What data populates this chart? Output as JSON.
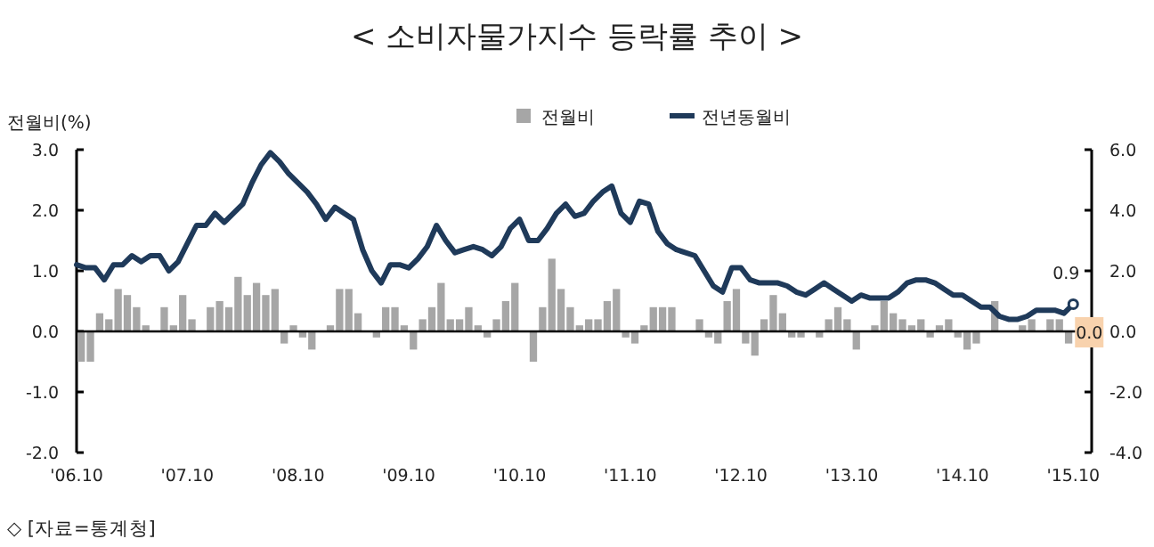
{
  "chart_data": {
    "type": "bar",
    "title": "< 소비자물가지수 등락률 추이 >",
    "ylabel": "전월비(%)",
    "annotations": [
      "◇ [자료=통계청]"
    ],
    "x": [
      "2006-10",
      "2006-11",
      "2006-12",
      "2007-01",
      "2007-02",
      "2007-03",
      "2007-04",
      "2007-05",
      "2007-06",
      "2007-07",
      "2007-08",
      "2007-09",
      "2007-10",
      "2007-11",
      "2007-12",
      "2008-01",
      "2008-02",
      "2008-03",
      "2008-04",
      "2008-05",
      "2008-06",
      "2008-07",
      "2008-08",
      "2008-09",
      "2008-10",
      "2008-11",
      "2008-12",
      "2009-01",
      "2009-02",
      "2009-03",
      "2009-04",
      "2009-05",
      "2009-06",
      "2009-07",
      "2009-08",
      "2009-09",
      "2009-10",
      "2009-11",
      "2009-12",
      "2010-01",
      "2010-02",
      "2010-03",
      "2010-04",
      "2010-05",
      "2010-06",
      "2010-07",
      "2010-08",
      "2010-09",
      "2010-10",
      "2010-11",
      "2010-12",
      "2011-01",
      "2011-02",
      "2011-03",
      "2011-04",
      "2011-05",
      "2011-06",
      "2011-07",
      "2011-08",
      "2011-09",
      "2011-10",
      "2011-11",
      "2011-12",
      "2012-01",
      "2012-02",
      "2012-03",
      "2012-04",
      "2012-05",
      "2012-06",
      "2012-07",
      "2012-08",
      "2012-09",
      "2012-10",
      "2012-11",
      "2012-12",
      "2013-01",
      "2013-02",
      "2013-03",
      "2013-04",
      "2013-05",
      "2013-06",
      "2013-07",
      "2013-08",
      "2013-09",
      "2013-10",
      "2013-11",
      "2013-12",
      "2014-01",
      "2014-02",
      "2014-03",
      "2014-04",
      "2014-05",
      "2014-06",
      "2014-07",
      "2014-08",
      "2014-09",
      "2014-10",
      "2014-11",
      "2014-12",
      "2015-01",
      "2015-02",
      "2015-03",
      "2015-04",
      "2015-05",
      "2015-06",
      "2015-07",
      "2015-08",
      "2015-09",
      "2015-10"
    ],
    "series": [
      {
        "name": "전월비",
        "color": "#a6a6a6",
        "values": [
          -0.5,
          -0.5,
          0.3,
          0.2,
          0.7,
          0.6,
          0.4,
          0.1,
          0,
          0.4,
          0.1,
          0.6,
          0.2,
          0,
          0.4,
          0.5,
          0.4,
          0.9,
          0.6,
          0.8,
          0.6,
          0.7,
          -0.2,
          0.1,
          -0.1,
          -0.3,
          0,
          0.1,
          0.7,
          0.7,
          0.3,
          0,
          -0.1,
          0.4,
          0.4,
          0.1,
          -0.3,
          0.2,
          0.4,
          0.8,
          0.2,
          0.2,
          0.4,
          0.1,
          -0.1,
          0.2,
          0.5,
          0.8,
          0,
          -0.5,
          0.4,
          1.2,
          0.7,
          0.4,
          0.1,
          0.2,
          0.2,
          0.5,
          0.7,
          -0.1,
          -0.2,
          0.1,
          0.4,
          0.4,
          0.4,
          0,
          0,
          0.2,
          -0.1,
          -0.2,
          0.5,
          0.7,
          -0.2,
          -0.4,
          0.2,
          0.6,
          0.3,
          -0.1,
          -0.1,
          0,
          -0.1,
          0.2,
          0.4,
          0.2,
          -0.3,
          0,
          0.1,
          0.5,
          0.3,
          0.2,
          0.1,
          0.2,
          -0.1,
          0.1,
          0.2,
          -0.1,
          -0.3,
          -0.2,
          0,
          0.5,
          0,
          0,
          0.1,
          0.2,
          0,
          0.2,
          0.2,
          -0.2,
          0.0
        ],
        "value_labels": [
          null,
          null,
          null,
          null,
          null,
          null,
          null,
          null,
          null,
          null,
          null,
          null,
          null,
          null,
          null,
          null,
          null,
          null,
          null,
          null,
          null,
          null,
          null,
          null,
          null,
          null,
          null,
          null,
          null,
          null,
          null,
          null,
          null,
          null,
          null,
          null,
          null,
          null,
          null,
          null,
          null,
          null,
          null,
          null,
          null,
          null,
          null,
          null,
          null,
          null,
          null,
          null,
          null,
          null,
          null,
          null,
          null,
          null,
          null,
          null,
          null,
          null,
          null,
          null,
          null,
          null,
          null,
          null,
          null,
          null,
          null,
          null,
          null,
          null,
          null,
          null,
          null,
          null,
          null,
          null,
          null,
          null,
          null,
          null,
          null,
          null,
          null,
          null,
          null,
          null,
          null,
          null,
          null,
          null,
          null,
          null,
          null,
          null,
          null,
          null,
          null,
          null,
          null,
          null,
          null,
          null,
          null,
          null,
          "0.0"
        ]
      },
      {
        "name": "전년동월비",
        "type": "line",
        "axis": "y2",
        "color": "#1f3a5a",
        "values": [
          2.2,
          2.1,
          2.1,
          1.7,
          2.2,
          2.2,
          2.5,
          2.3,
          2.5,
          2.5,
          2.0,
          2.3,
          2.9,
          3.5,
          3.5,
          3.9,
          3.6,
          3.9,
          4.2,
          4.9,
          5.5,
          5.9,
          5.6,
          5.2,
          4.9,
          4.6,
          4.2,
          3.7,
          4.1,
          3.9,
          3.7,
          2.7,
          2.0,
          1.6,
          2.2,
          2.2,
          2.1,
          2.4,
          2.8,
          3.5,
          3.0,
          2.6,
          2.7,
          2.8,
          2.7,
          2.5,
          2.8,
          3.4,
          3.7,
          3.0,
          3.0,
          3.4,
          3.9,
          4.2,
          3.8,
          3.9,
          4.3,
          4.6,
          4.8,
          3.9,
          3.6,
          4.3,
          4.2,
          3.3,
          2.9,
          2.7,
          2.6,
          2.5,
          2.0,
          1.5,
          1.3,
          2.1,
          2.1,
          1.7,
          1.6,
          1.6,
          1.6,
          1.5,
          1.3,
          1.2,
          1.4,
          1.6,
          1.4,
          1.2,
          1.0,
          1.2,
          1.1,
          1.1,
          1.1,
          1.3,
          1.6,
          1.7,
          1.7,
          1.6,
          1.4,
          1.2,
          1.2,
          1.0,
          0.8,
          0.8,
          0.5,
          0.4,
          0.4,
          0.5,
          0.7,
          0.7,
          0.7,
          0.6,
          0.9
        ],
        "value_labels": [
          null,
          null,
          null,
          null,
          null,
          null,
          null,
          null,
          null,
          null,
          null,
          null,
          null,
          null,
          null,
          null,
          null,
          null,
          null,
          null,
          null,
          null,
          null,
          null,
          null,
          null,
          null,
          null,
          null,
          null,
          null,
          null,
          null,
          null,
          null,
          null,
          null,
          null,
          null,
          null,
          null,
          null,
          null,
          null,
          null,
          null,
          null,
          null,
          null,
          null,
          null,
          null,
          null,
          null,
          null,
          null,
          null,
          null,
          null,
          null,
          null,
          null,
          null,
          null,
          null,
          null,
          null,
          null,
          null,
          null,
          null,
          null,
          null,
          null,
          null,
          null,
          null,
          null,
          null,
          null,
          null,
          null,
          null,
          null,
          null,
          null,
          null,
          null,
          null,
          null,
          null,
          null,
          null,
          null,
          null,
          null,
          null,
          null,
          null,
          null,
          null,
          null,
          null,
          null,
          null,
          null,
          null,
          null,
          "0.9"
        ]
      }
    ],
    "xlim": [
      "2006-10",
      "2015-12"
    ],
    "xticks": [
      {
        "value": "2006-10",
        "label": "'06.10"
      },
      {
        "value": "2007-10",
        "label": "'07.10"
      },
      {
        "value": "2008-10",
        "label": "'08.10"
      },
      {
        "value": "2009-10",
        "label": "'09.10"
      },
      {
        "value": "2010-10",
        "label": "'10.10"
      },
      {
        "value": "2011-10",
        "label": "'11.10"
      },
      {
        "value": "2012-10",
        "label": "'12.10"
      },
      {
        "value": "2013-10",
        "label": "'13.10"
      },
      {
        "value": "2014-10",
        "label": "'14.10"
      },
      {
        "value": "2015-10",
        "label": "'15.10"
      }
    ],
    "ylim": [
      -2,
      3
    ],
    "yticks": [
      {
        "value": -2,
        "label": "-2.0"
      },
      {
        "value": -1,
        "label": "-1.0"
      },
      {
        "value": 0,
        "label": "0.0"
      },
      {
        "value": 1,
        "label": "1.0"
      },
      {
        "value": 2,
        "label": "2.0"
      },
      {
        "value": 3,
        "label": "3.0"
      }
    ],
    "y2lim": [
      -4,
      6
    ],
    "y2ticks": [
      {
        "value": -4,
        "label": "-4.0"
      },
      {
        "value": -2,
        "label": "-2.0"
      },
      {
        "value": 0,
        "label": "0.0"
      },
      {
        "value": 2,
        "label": "2.0"
      },
      {
        "value": 4,
        "label": "4.0"
      },
      {
        "value": 6,
        "label": "6.0"
      }
    ],
    "legend": "top"
  }
}
